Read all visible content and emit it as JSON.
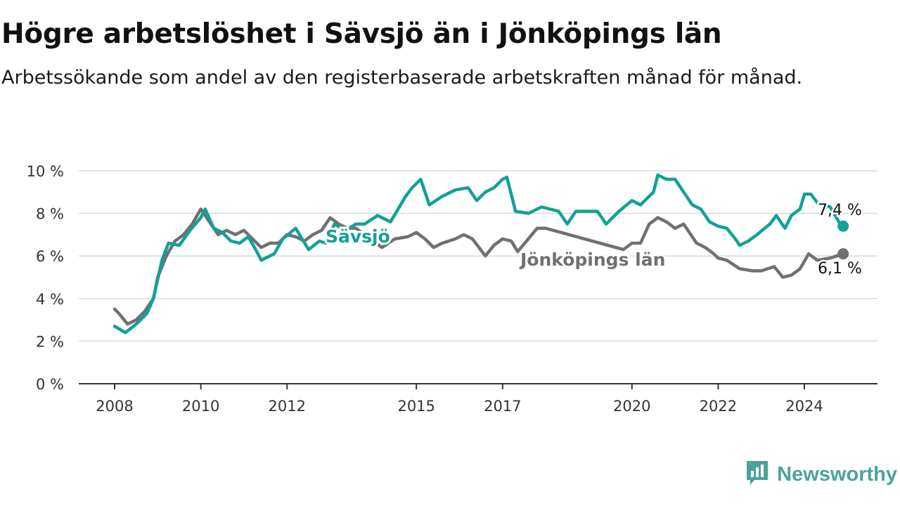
{
  "header": {
    "title": "Högre arbetslöshet i Sävsjö än i Jönköpings län",
    "subtitle": "Arbetssökande som andel av den registerbaserade arbetskraften månad för månad."
  },
  "brand": {
    "name": "Newsworthy",
    "icon": "newsworthy-logo-icon",
    "color": "#4aa39b"
  },
  "colors": {
    "savsjo": "#14a096",
    "lan": "#707070",
    "grid": "#d9d9d9",
    "axis": "#333333"
  },
  "chart_data": {
    "type": "line",
    "xlabel": "",
    "ylabel": "",
    "ylim": [
      0,
      10
    ],
    "xlim": [
      2008,
      2025.0
    ],
    "y_ticks": [
      0,
      2,
      4,
      6,
      8,
      10
    ],
    "y_tick_labels": [
      "0 %",
      "2 %",
      "4 %",
      "6 %",
      "8 %",
      "10 %"
    ],
    "x_ticks": [
      2008,
      2010,
      2012,
      2015,
      2017,
      2020,
      2022,
      2024
    ],
    "x_tick_labels": [
      "2008",
      "2010",
      "2012",
      "2015",
      "2017",
      "2020",
      "2022",
      "2024"
    ],
    "grid": true,
    "legend": "inline labels",
    "series": [
      {
        "name": "Sävsjö",
        "color": "#14a096",
        "end_label": "7,4 %",
        "points": [
          [
            2008.0,
            2.7
          ],
          [
            2008.25,
            2.4
          ],
          [
            2008.5,
            2.8
          ],
          [
            2008.75,
            3.3
          ],
          [
            2008.9,
            4.0
          ],
          [
            2009.1,
            5.8
          ],
          [
            2009.25,
            6.6
          ],
          [
            2009.5,
            6.5
          ],
          [
            2009.75,
            7.2
          ],
          [
            2010.0,
            7.8
          ],
          [
            2010.1,
            8.2
          ],
          [
            2010.3,
            7.3
          ],
          [
            2010.5,
            7.1
          ],
          [
            2010.7,
            6.7
          ],
          [
            2010.9,
            6.6
          ],
          [
            2011.1,
            6.9
          ],
          [
            2011.3,
            6.2
          ],
          [
            2011.4,
            5.8
          ],
          [
            2011.7,
            6.1
          ],
          [
            2011.9,
            6.8
          ],
          [
            2012.2,
            7.3
          ],
          [
            2012.35,
            6.8
          ],
          [
            2012.5,
            6.3
          ],
          [
            2012.75,
            6.7
          ],
          [
            2012.9,
            6.6
          ],
          [
            2013.1,
            7.5
          ],
          [
            2013.35,
            7.2
          ],
          [
            2013.6,
            7.5
          ],
          [
            2013.8,
            7.5
          ],
          [
            2014.1,
            7.9
          ],
          [
            2014.4,
            7.6
          ],
          [
            2014.75,
            8.8
          ],
          [
            2014.9,
            9.2
          ],
          [
            2015.1,
            9.6
          ],
          [
            2015.3,
            8.4
          ],
          [
            2015.6,
            8.8
          ],
          [
            2015.9,
            9.1
          ],
          [
            2016.2,
            9.2
          ],
          [
            2016.4,
            8.6
          ],
          [
            2016.6,
            9.0
          ],
          [
            2016.8,
            9.2
          ],
          [
            2017.0,
            9.6
          ],
          [
            2017.1,
            9.7
          ],
          [
            2017.3,
            8.1
          ],
          [
            2017.6,
            8.0
          ],
          [
            2017.9,
            8.3
          ],
          [
            2018.3,
            8.1
          ],
          [
            2018.5,
            7.5
          ],
          [
            2018.7,
            8.1
          ],
          [
            2019.0,
            8.1
          ],
          [
            2019.2,
            8.1
          ],
          [
            2019.4,
            7.5
          ],
          [
            2019.7,
            8.1
          ],
          [
            2020.0,
            8.6
          ],
          [
            2020.2,
            8.4
          ],
          [
            2020.5,
            9.0
          ],
          [
            2020.6,
            9.8
          ],
          [
            2020.8,
            9.6
          ],
          [
            2021.0,
            9.6
          ],
          [
            2021.2,
            9.0
          ],
          [
            2021.4,
            8.4
          ],
          [
            2021.6,
            8.2
          ],
          [
            2021.8,
            7.6
          ],
          [
            2022.0,
            7.4
          ],
          [
            2022.2,
            7.3
          ],
          [
            2022.4,
            6.8
          ],
          [
            2022.5,
            6.5
          ],
          [
            2022.7,
            6.7
          ],
          [
            2022.9,
            7.0
          ],
          [
            2023.2,
            7.5
          ],
          [
            2023.35,
            7.9
          ],
          [
            2023.55,
            7.3
          ],
          [
            2023.7,
            7.9
          ],
          [
            2023.9,
            8.2
          ],
          [
            2024.0,
            8.9
          ],
          [
            2024.15,
            8.9
          ],
          [
            2024.3,
            8.5
          ],
          [
            2024.6,
            8.3
          ],
          [
            2024.8,
            7.6
          ],
          [
            2024.9,
            7.4
          ]
        ]
      },
      {
        "name": "Jönköpings län",
        "color": "#707070",
        "end_label": "6,1 %",
        "points": [
          [
            2008.0,
            3.5
          ],
          [
            2008.1,
            3.3
          ],
          [
            2008.3,
            2.8
          ],
          [
            2008.5,
            3.0
          ],
          [
            2008.7,
            3.4
          ],
          [
            2008.9,
            4.0
          ],
          [
            2009.0,
            5.0
          ],
          [
            2009.2,
            6.0
          ],
          [
            2009.4,
            6.7
          ],
          [
            2009.6,
            7.0
          ],
          [
            2009.8,
            7.5
          ],
          [
            2010.0,
            8.2
          ],
          [
            2010.2,
            7.6
          ],
          [
            2010.4,
            7.0
          ],
          [
            2010.6,
            7.2
          ],
          [
            2010.8,
            7.0
          ],
          [
            2011.0,
            7.2
          ],
          [
            2011.2,
            6.8
          ],
          [
            2011.4,
            6.4
          ],
          [
            2011.6,
            6.6
          ],
          [
            2011.8,
            6.6
          ],
          [
            2012.0,
            7.0
          ],
          [
            2012.2,
            6.9
          ],
          [
            2012.4,
            6.7
          ],
          [
            2012.6,
            7.0
          ],
          [
            2012.8,
            7.2
          ],
          [
            2013.0,
            7.8
          ],
          [
            2013.2,
            7.5
          ],
          [
            2013.4,
            7.3
          ],
          [
            2013.6,
            7.3
          ],
          [
            2014.2,
            6.4
          ],
          [
            2014.5,
            6.8
          ],
          [
            2014.8,
            6.9
          ],
          [
            2015.0,
            7.1
          ],
          [
            2015.2,
            6.8
          ],
          [
            2015.4,
            6.4
          ],
          [
            2015.6,
            6.6
          ],
          [
            2015.9,
            6.8
          ],
          [
            2016.1,
            7.0
          ],
          [
            2016.3,
            6.8
          ],
          [
            2016.6,
            6.0
          ],
          [
            2016.8,
            6.5
          ],
          [
            2017.0,
            6.8
          ],
          [
            2017.2,
            6.7
          ],
          [
            2017.35,
            6.2
          ],
          [
            2017.8,
            7.3
          ],
          [
            2018.0,
            7.3
          ],
          [
            2019.8,
            6.3
          ],
          [
            2020.0,
            6.6
          ],
          [
            2020.2,
            6.6
          ],
          [
            2020.4,
            7.5
          ],
          [
            2020.6,
            7.8
          ],
          [
            2020.8,
            7.6
          ],
          [
            2021.0,
            7.3
          ],
          [
            2021.2,
            7.5
          ],
          [
            2021.5,
            6.6
          ],
          [
            2021.7,
            6.4
          ],
          [
            2021.9,
            6.1
          ],
          [
            2022.0,
            5.9
          ],
          [
            2022.2,
            5.8
          ],
          [
            2022.5,
            5.4
          ],
          [
            2022.8,
            5.3
          ],
          [
            2023.0,
            5.3
          ],
          [
            2023.3,
            5.5
          ],
          [
            2023.5,
            5.0
          ],
          [
            2023.7,
            5.1
          ],
          [
            2023.9,
            5.4
          ],
          [
            2024.1,
            6.1
          ],
          [
            2024.3,
            5.8
          ],
          [
            2024.6,
            5.9
          ],
          [
            2024.75,
            6.0
          ],
          [
            2024.9,
            6.1
          ]
        ]
      }
    ]
  }
}
